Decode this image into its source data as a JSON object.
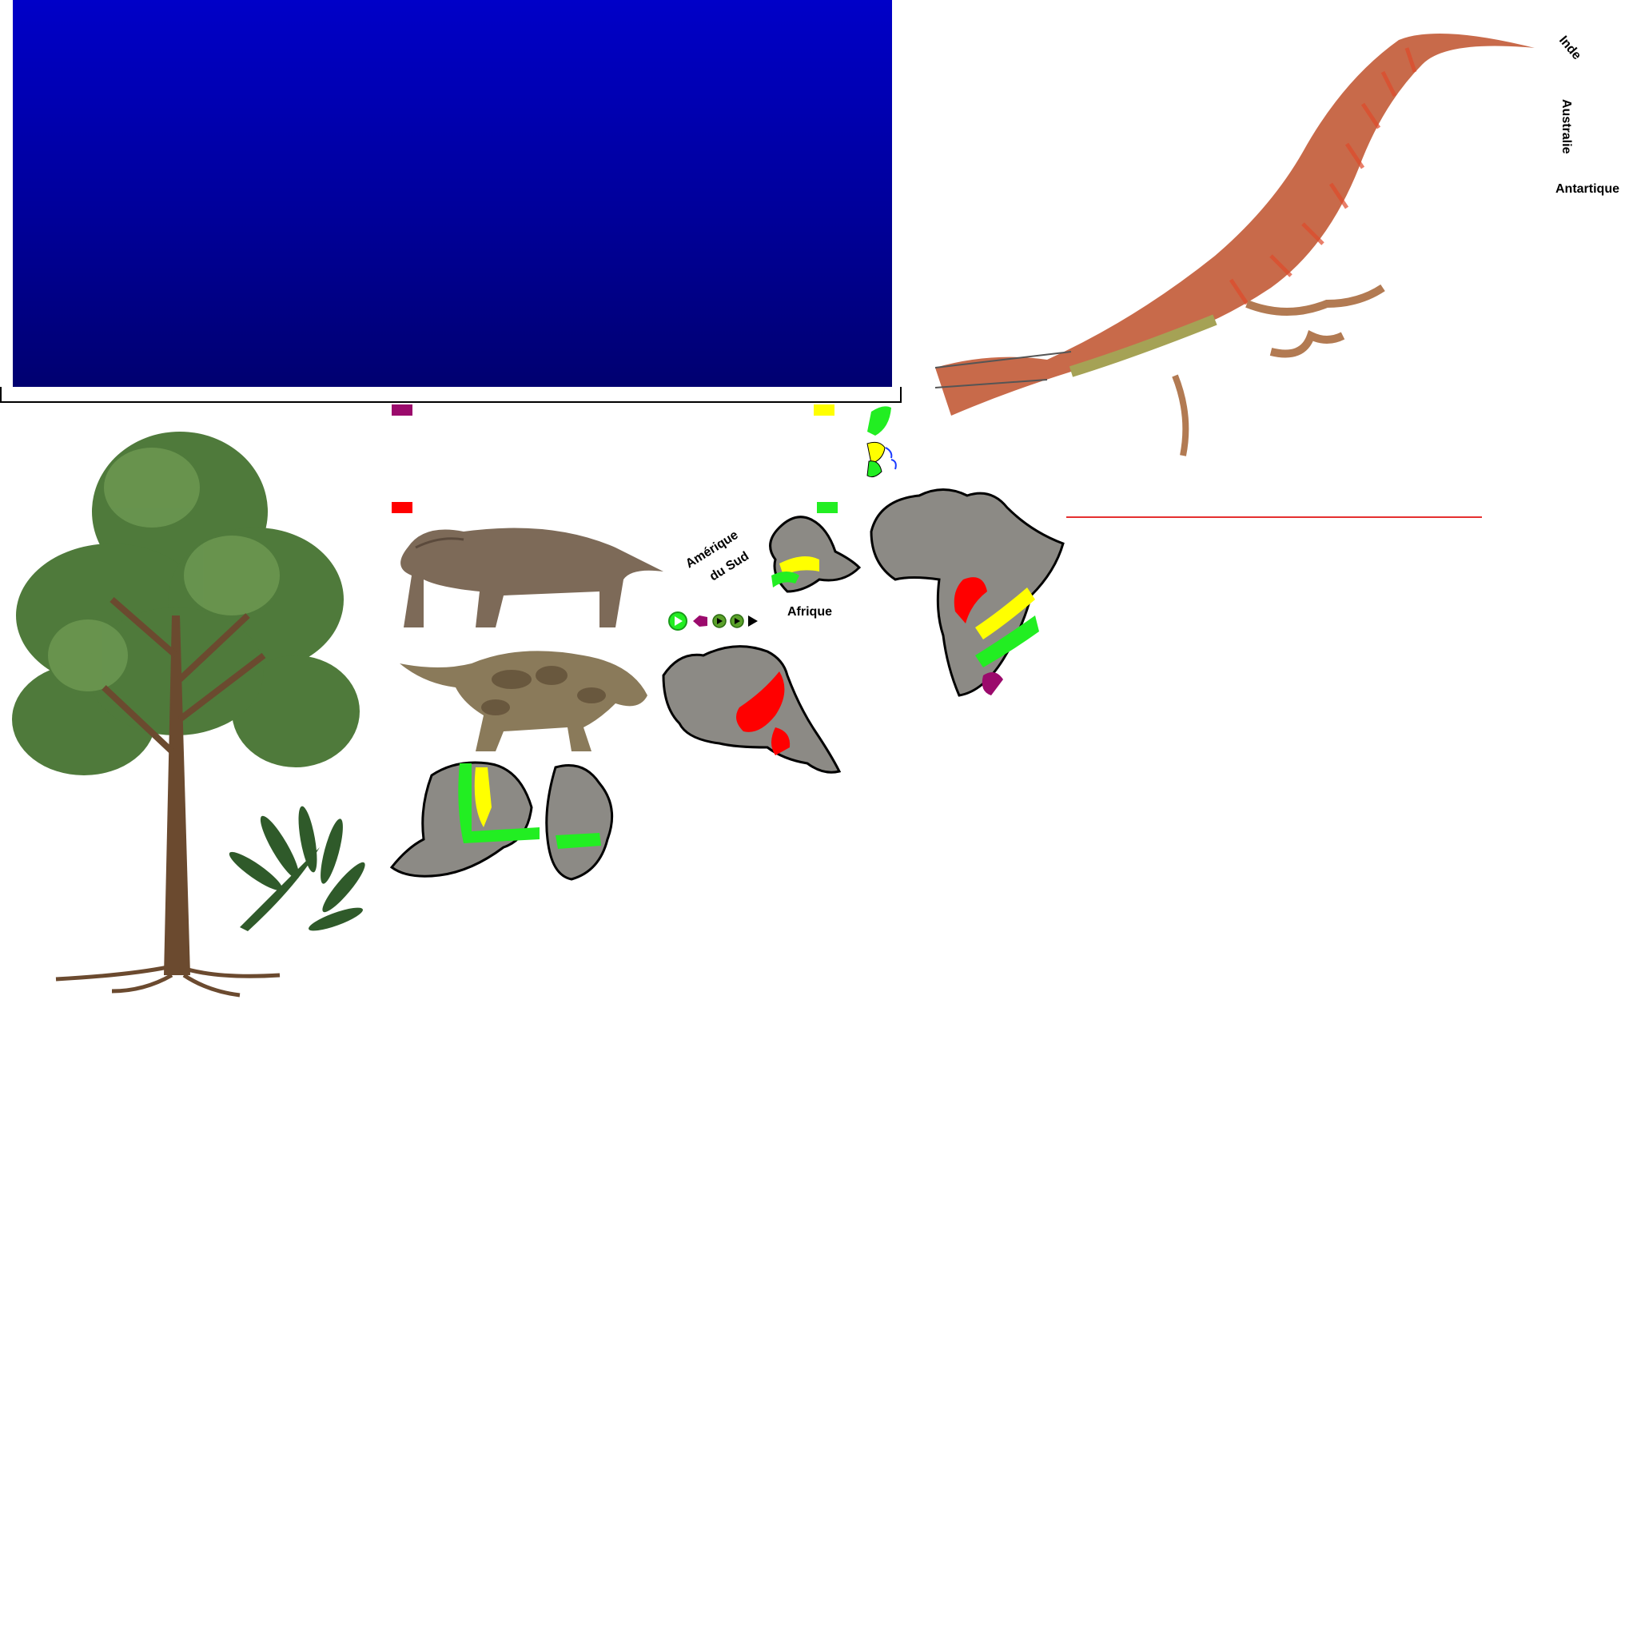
{
  "labels": {
    "inde": "Inde",
    "australie": "Australie",
    "antartique": "Antartique",
    "amerique_du_sud_line1": "Amérique",
    "amerique_du_sud_line2": "du Sud",
    "afrique": "Afrique"
  },
  "legend_colors": {
    "purple": "#9b0a6c",
    "yellow": "#ffff00",
    "red": "#ff0000",
    "green": "#22ee22"
  },
  "panel_color": "#0000b8",
  "rule_color": "#e53030",
  "player_controls": [
    "play-icon",
    "back-icon",
    "play-small-icon",
    "play-small-icon",
    "next-icon"
  ]
}
